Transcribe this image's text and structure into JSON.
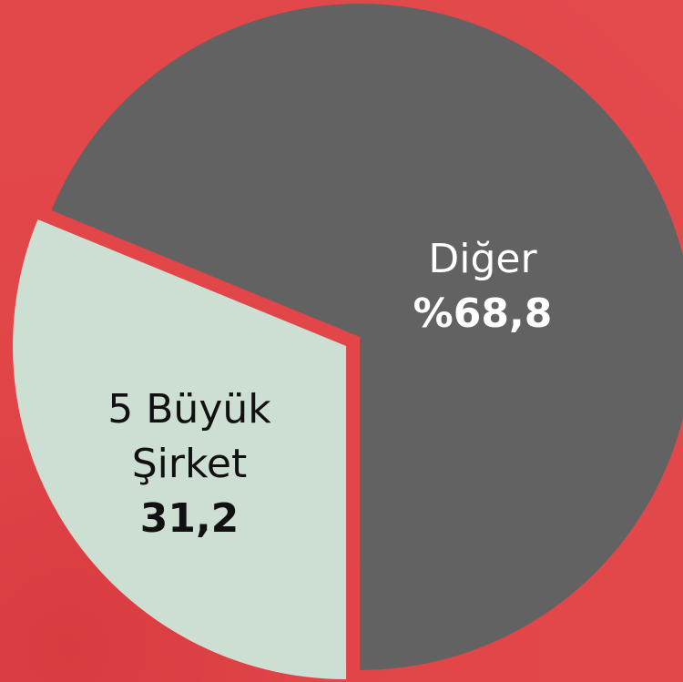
{
  "chart_data": {
    "type": "pie",
    "categories": [
      "Diğer",
      "5 Büyük Şirket"
    ],
    "values": [
      68.8,
      31.2
    ],
    "value_labels": [
      "%68,8",
      "31,2"
    ],
    "colors": [
      "#636262",
      "#cddfd2"
    ],
    "label_colors": [
      "#ffffff",
      "#111111"
    ]
  }
}
